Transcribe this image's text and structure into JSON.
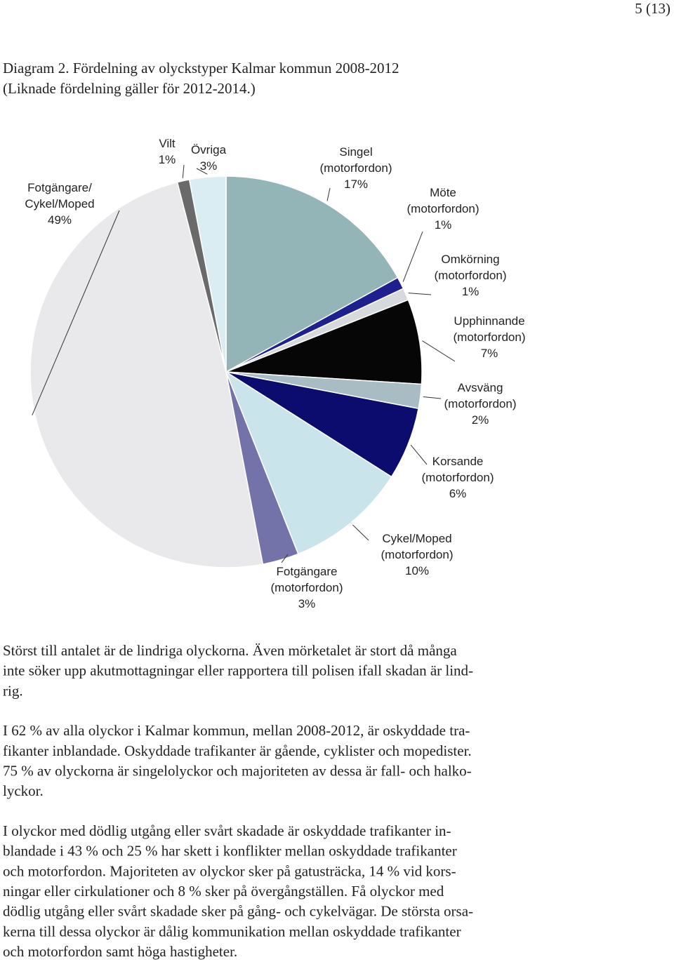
{
  "header": {
    "page_number": "5 (13)"
  },
  "caption": [
    "Diagram 2. Fördelning av olyckstyper Kalmar kommun 2008-2012",
    "(Liknade fördelning gäller för 2012-2014.)"
  ],
  "chart_data": {
    "type": "pie",
    "categories": [
      [
        "Singel",
        "(motorfordon)"
      ],
      [
        "Möte",
        "(motorfordon)"
      ],
      [
        "Omkörning",
        "(motorfordon)"
      ],
      [
        "Upphinnande",
        "(motorfordon)"
      ],
      [
        "Avsväng",
        "(motorfordon)"
      ],
      [
        "Korsande",
        "(motorfordon)"
      ],
      [
        "Cykel/Moped",
        "(motorfordon)"
      ],
      [
        "Fotgängare",
        "(motorfordon)"
      ],
      [
        "Fotgängare/",
        "Cykel/Moped"
      ],
      [
        "Vilt"
      ],
      [
        "Övriga"
      ]
    ],
    "values": [
      17,
      1,
      1,
      7,
      2,
      6,
      10,
      3,
      49,
      1,
      3
    ],
    "value_labels": [
      "17%",
      "1%",
      "1%",
      "7%",
      "2%",
      "6%",
      "10%",
      "3%",
      "49%",
      "1%",
      "3%"
    ],
    "colors": [
      "#93b5b8",
      "#1f2090",
      "#d6dadd",
      "#060606",
      "#a8bcc3",
      "#0c0c6e",
      "#c9e5eb",
      "#7373aa",
      "#e9e9eb",
      "#6a6a6a",
      "#d9edf2"
    ]
  },
  "paragraphs": [
    [
      "Störst till antalet är de lindriga olyckorna. Även mörketalet är stort då många",
      "inte söker upp akutmottagningar eller rapportera till polisen ifall skadan är lind-",
      "rig."
    ],
    [
      "I 62 % av alla olyckor i Kalmar kommun, mellan 2008-2012, är oskyddade tra-",
      "fikanter inblandade. Oskyddade trafikanter är gående, cyklister och mopedister.",
      "75 % av olyckorna är singelolyckor och majoriteten av dessa är fall- och halko-",
      "lyckor."
    ],
    [
      "I olyckor med dödlig utgång eller svårt skadade är oskyddade trafikanter in-",
      "blandade i 43 % och 25 % har skett i konflikter mellan oskyddade trafikanter",
      "och motorfordon. Majoriteten av olyckor sker på gatusträcka, 14 % vid kors-",
      "ningar eller cirkulationer och 8 % sker på övergångställen. Få olyckor med",
      "dödlig utgång eller svårt skadade sker på gång- och cykelvägar. De största orsa-",
      "kerna till dessa olyckor är dålig kommunikation mellan oskyddade trafikanter",
      "och motorfordon samt höga hastigheter."
    ]
  ]
}
